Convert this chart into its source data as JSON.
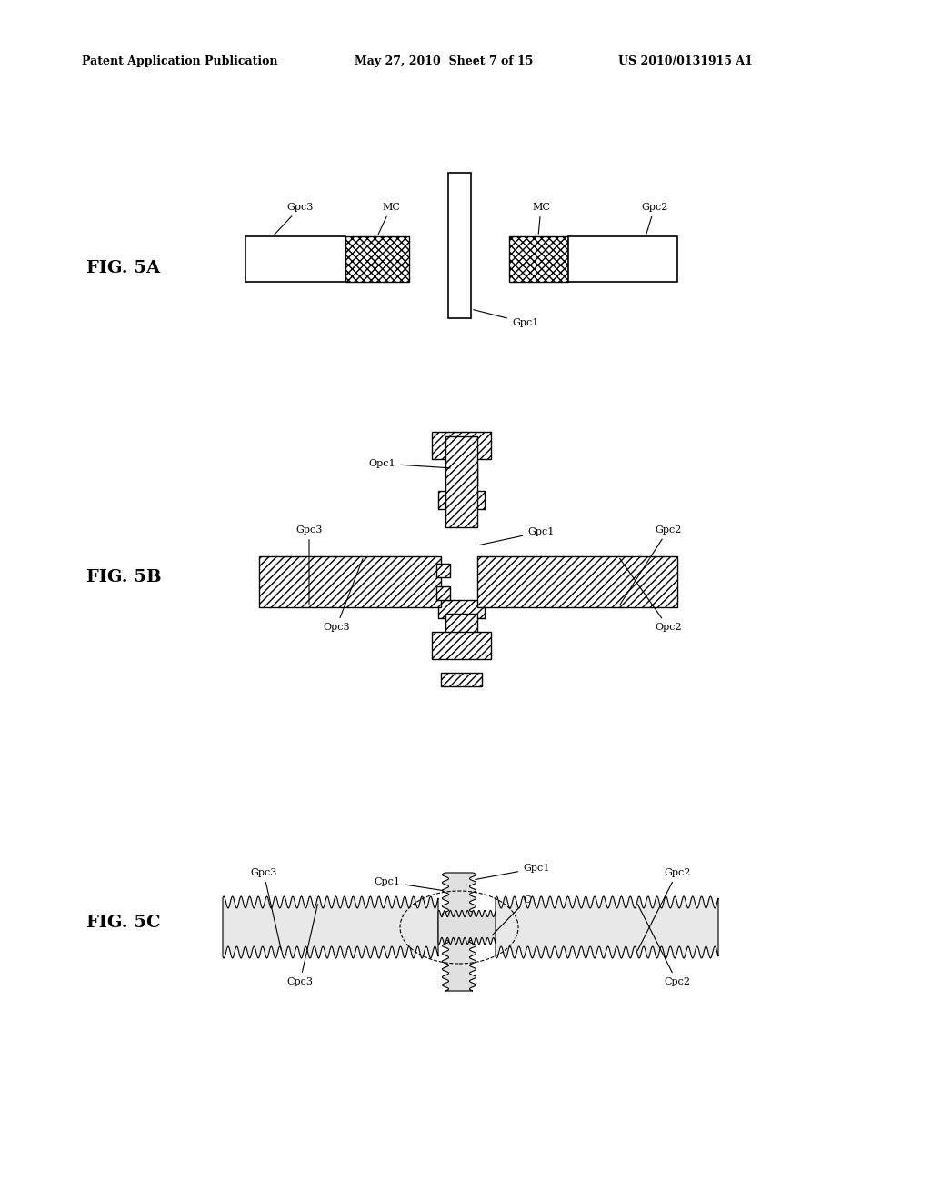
{
  "bg_color": "#ffffff",
  "header_text": "Patent Application Publication",
  "header_date": "May 27, 2010  Sheet 7 of 15",
  "header_patent": "US 2010/0131915 A1",
  "fig5a_label": "FIG. 5A",
  "fig5b_label": "FIG. 5B",
  "fig5c_label": "FIG. 5C"
}
